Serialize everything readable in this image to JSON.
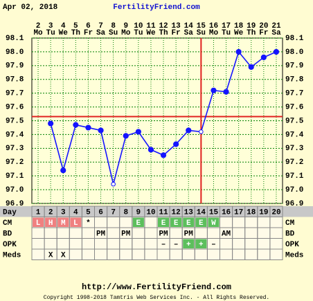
{
  "header": {
    "date": "Apr 02, 2018",
    "site": "FertilityFriend.com"
  },
  "chart_data": {
    "type": "line",
    "categories": [
      "2",
      "3",
      "4",
      "5",
      "6",
      "7",
      "8",
      "9",
      "10",
      "11",
      "12",
      "13",
      "14",
      "15",
      "16",
      "17",
      "18",
      "19",
      "20",
      "21"
    ],
    "weekdays": [
      "Mo",
      "Tu",
      "We",
      "Th",
      "Fr",
      "Sa",
      "Su",
      "Mo",
      "Tu",
      "We",
      "Th",
      "Fr",
      "Sa",
      "Su",
      "Mo",
      "Tu",
      "We",
      "Th",
      "Fr",
      "Sa"
    ],
    "values": [
      null,
      97.48,
      97.14,
      97.47,
      97.45,
      97.43,
      97.04,
      97.39,
      97.42,
      97.29,
      97.25,
      97.33,
      97.43,
      97.42,
      97.72,
      97.71,
      98.0,
      97.89,
      97.96,
      98.0
    ],
    "color": "#1414ff",
    "open_markers": [
      6,
      13
    ],
    "ylim": [
      96.9,
      98.1
    ],
    "yticks": [
      98.1,
      {
        "value": 98,
        "label": "98.0"
      },
      97.9,
      97.8,
      97.7,
      97.6,
      97.5,
      97.4,
      97.3,
      97.2,
      97.1,
      {
        "value": 97,
        "label": "97.0"
      },
      96.9
    ],
    "grid": true,
    "coverline": 97.53,
    "ovulation_index": 13,
    "marker_color": "#e02020"
  },
  "table": {
    "row_labels": [
      "Day",
      "CM",
      "BD",
      "OPK",
      "Meds"
    ],
    "right_labels": [
      "CM",
      "BD",
      "OPK",
      "Meds"
    ],
    "days": [
      1,
      2,
      3,
      4,
      5,
      6,
      7,
      8,
      9,
      10,
      11,
      12,
      13,
      14,
      15,
      16,
      17,
      18,
      19,
      20
    ],
    "cm": [
      "L",
      "H",
      "M",
      "L",
      "*",
      null,
      null,
      null,
      "E",
      null,
      "E",
      "E",
      "E",
      "E",
      "W",
      null,
      null,
      null,
      null,
      null
    ],
    "cm_colors": [
      "#f08080",
      "#f08080",
      "#f08080",
      "#f08080",
      null,
      null,
      null,
      null,
      "#5cbf5c",
      null,
      "#5cbf5c",
      "#5cbf5c",
      "#5cbf5c",
      "#5cbf5c",
      "#5cbf5c",
      null,
      null,
      null,
      null,
      null
    ],
    "bd": [
      null,
      null,
      null,
      null,
      null,
      "PM",
      null,
      "PM",
      null,
      null,
      "PM",
      null,
      "PM",
      null,
      null,
      "AM",
      null,
      null,
      null,
      null
    ],
    "opk": [
      null,
      null,
      null,
      null,
      null,
      null,
      null,
      null,
      null,
      null,
      "–",
      "–",
      "+",
      "+",
      "–",
      null,
      null,
      null,
      null,
      null
    ],
    "opk_colors": [
      null,
      null,
      null,
      null,
      null,
      null,
      null,
      null,
      null,
      null,
      null,
      null,
      "#5cbf5c",
      "#5cbf5c",
      null,
      null,
      null,
      null,
      null,
      null
    ],
    "meds": [
      null,
      "X",
      "X",
      null,
      null,
      null,
      null,
      null,
      null,
      null,
      null,
      null,
      null,
      null,
      null,
      null,
      null,
      null,
      null,
      null
    ]
  },
  "footer": {
    "url": "http://www.FertilityFriend.com",
    "copyright": "Copyright 1998-2018 Tamtris Web Services Inc. - All Rights Reserved."
  }
}
